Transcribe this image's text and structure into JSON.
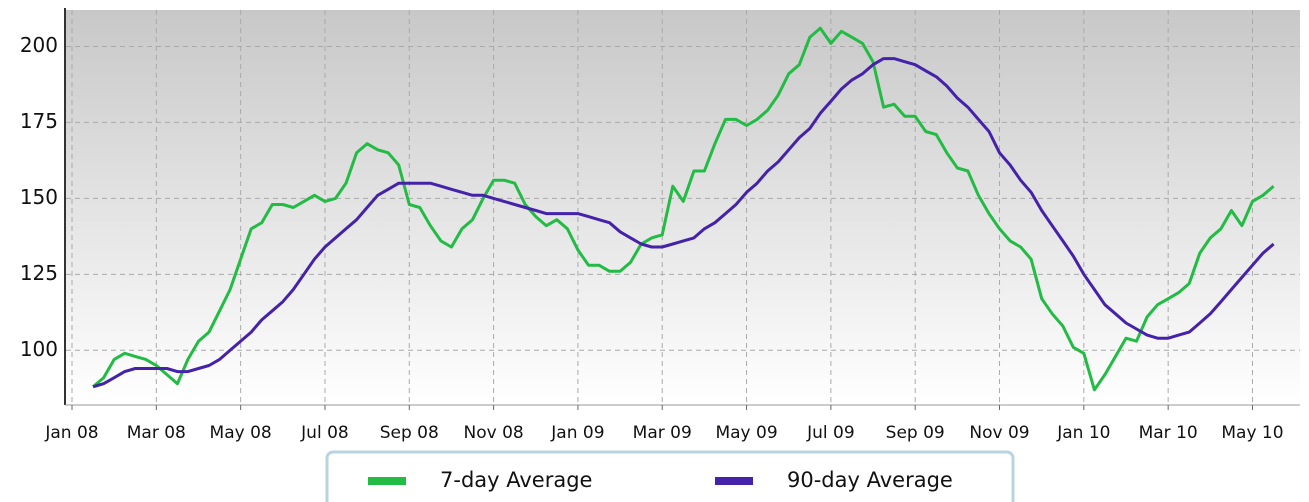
{
  "chart_data": {
    "type": "line",
    "categories": [
      "Jan 08",
      null,
      null,
      null,
      null,
      null,
      null,
      null,
      "Mar 08",
      null,
      null,
      null,
      null,
      null,
      null,
      null,
      "May 08",
      null,
      null,
      null,
      null,
      null,
      null,
      null,
      "Jul 08",
      null,
      null,
      null,
      null,
      null,
      null,
      null,
      "Sep 08",
      null,
      null,
      null,
      null,
      null,
      null,
      null,
      "Nov 08",
      null,
      null,
      null,
      null,
      null,
      null,
      null,
      "Jan 09",
      null,
      null,
      null,
      null,
      null,
      null,
      null,
      "Mar 09",
      null,
      null,
      null,
      null,
      null,
      null,
      null,
      "May 09",
      null,
      null,
      null,
      null,
      null,
      null,
      null,
      "Jul 09",
      null,
      null,
      null,
      null,
      null,
      null,
      null,
      "Sep 09",
      null,
      null,
      null,
      null,
      null,
      null,
      null,
      "Nov 09",
      null,
      null,
      null,
      null,
      null,
      null,
      null,
      "Jan 10",
      null,
      null,
      null,
      null,
      null,
      null,
      null,
      "Mar 10",
      null,
      null,
      null,
      null,
      null,
      null,
      null,
      "May 10",
      null,
      null
    ],
    "series": [
      {
        "name": "7-day Average",
        "color": "#22bb44",
        "values": [
          null,
          null,
          88,
          91,
          97,
          99,
          98,
          97,
          95,
          92,
          89,
          97,
          103,
          106,
          113,
          120,
          130,
          140,
          142,
          148,
          148,
          147,
          149,
          151,
          149,
          150,
          155,
          165,
          168,
          166,
          165,
          161,
          148,
          147,
          141,
          136,
          134,
          140,
          143,
          150,
          156,
          156,
          155,
          148,
          144,
          141,
          143,
          140,
          133,
          128,
          128,
          126,
          126,
          129,
          135,
          137,
          138,
          154,
          149,
          159,
          159,
          168,
          176,
          176,
          174,
          176,
          179,
          184,
          191,
          194,
          203,
          206,
          201,
          205,
          203,
          201,
          195,
          180,
          181,
          177,
          177,
          172,
          171,
          165,
          160,
          159,
          151,
          145,
          140,
          136,
          134,
          130,
          117,
          112,
          108,
          101,
          99,
          87,
          92,
          98,
          104,
          103,
          111,
          115,
          117,
          119,
          122,
          132,
          137,
          140,
          146,
          141,
          149,
          151,
          154
        ]
      },
      {
        "name": "90-day Average",
        "color": "#4422aa",
        "values": [
          null,
          null,
          88,
          89,
          91,
          93,
          94,
          94,
          94,
          94,
          93,
          93,
          94,
          95,
          97,
          100,
          103,
          106,
          110,
          113,
          116,
          120,
          125,
          130,
          134,
          137,
          140,
          143,
          147,
          151,
          153,
          155,
          155,
          155,
          155,
          154,
          153,
          152,
          151,
          151,
          150,
          149,
          148,
          147,
          146,
          145,
          145,
          145,
          145,
          144,
          143,
          142,
          139,
          137,
          135,
          134,
          134,
          135,
          136,
          137,
          140,
          142,
          145,
          148,
          152,
          155,
          159,
          162,
          166,
          170,
          173,
          178,
          182,
          186,
          189,
          191,
          194,
          196,
          196,
          195,
          194,
          192,
          190,
          187,
          183,
          180,
          176,
          172,
          165,
          161,
          156,
          152,
          146,
          141,
          136,
          131,
          125,
          120,
          115,
          112,
          109,
          107,
          105,
          104,
          104,
          105,
          106,
          109,
          112,
          116,
          120,
          124,
          128,
          132,
          135
        ]
      }
    ],
    "ylim": [
      82,
      212
    ],
    "yticks": [
      100,
      125,
      150,
      175,
      200
    ],
    "grid": true
  }
}
